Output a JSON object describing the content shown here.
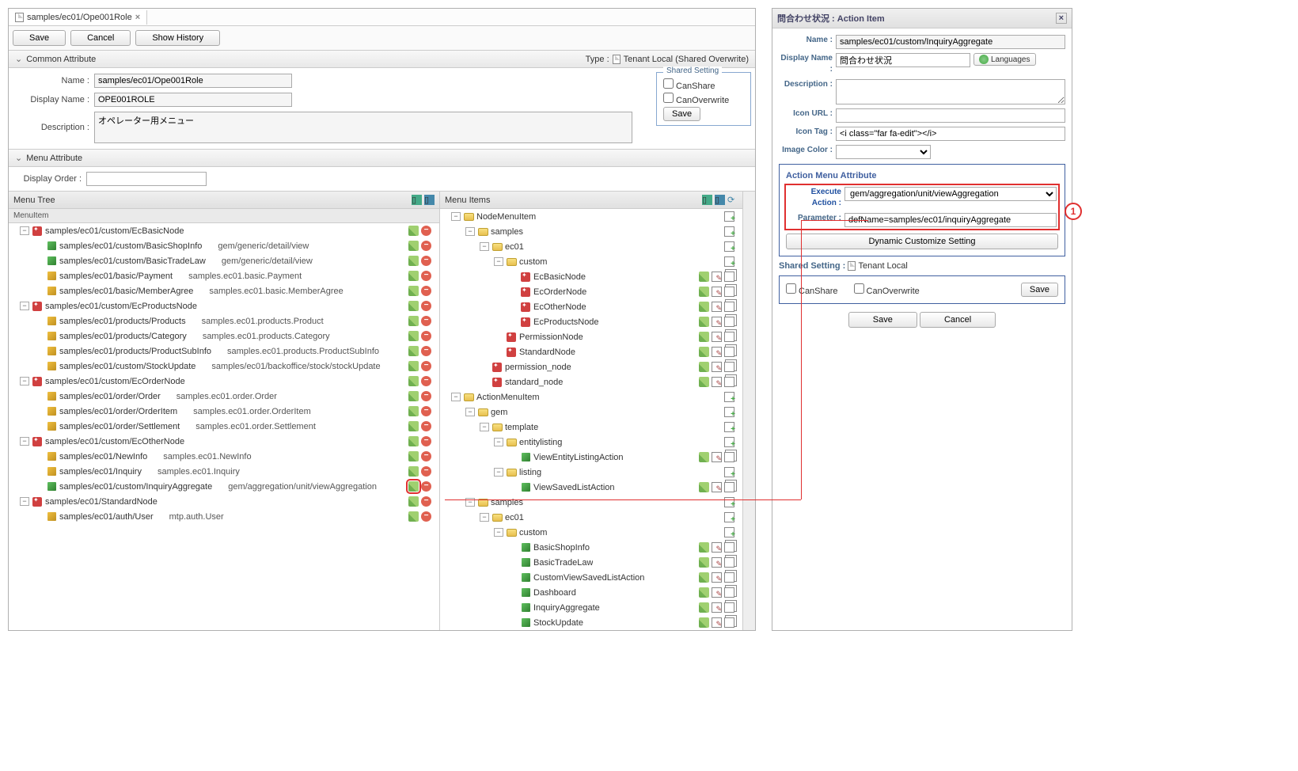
{
  "tab": {
    "title": "samples/ec01/Ope001Role"
  },
  "toolbar": {
    "save": "Save",
    "cancel": "Cancel",
    "history": "Show History"
  },
  "common": {
    "header": "Common Attribute",
    "name_label": "Name :",
    "name": "samples/ec01/Ope001Role",
    "display_label": "Display Name :",
    "display": "OPE001ROLE",
    "desc_label": "Description :",
    "desc": "オペレーター用メニュー",
    "type_label": "Type :",
    "type": "Tenant Local (Shared Overwrite)",
    "shared_title": "Shared Setting",
    "canshare": "CanShare",
    "canoverwrite": "CanOverwrite",
    "save": "Save"
  },
  "menuattr": {
    "header": "Menu Attribute",
    "order_label": "Display Order :"
  },
  "leftcol": {
    "title": "Menu Tree",
    "header": "MenuItem"
  },
  "rightcol": {
    "title": "Menu Items"
  },
  "tree_left": [
    {
      "d": 0,
      "t": "⊟",
      "ic": "node",
      "l": "samples/ec01/custom/EcBasicNode",
      "x": "",
      "a": "ed"
    },
    {
      "d": 1,
      "t": "",
      "ic": "g",
      "l": "samples/ec01/custom/BasicShopInfo",
      "x": "gem/generic/detail/view",
      "a": "ed"
    },
    {
      "d": 1,
      "t": "",
      "ic": "g",
      "l": "samples/ec01/custom/BasicTradeLaw",
      "x": "gem/generic/detail/view",
      "a": "ed"
    },
    {
      "d": 1,
      "t": "",
      "ic": "y",
      "l": "samples/ec01/basic/Payment",
      "x": "samples.ec01.basic.Payment",
      "a": "ed"
    },
    {
      "d": 1,
      "t": "",
      "ic": "y",
      "l": "samples/ec01/basic/MemberAgree",
      "x": "samples.ec01.basic.MemberAgree",
      "a": "ed"
    },
    {
      "d": 0,
      "t": "⊟",
      "ic": "node",
      "l": "samples/ec01/custom/EcProductsNode",
      "x": "",
      "a": "ed"
    },
    {
      "d": 1,
      "t": "",
      "ic": "y",
      "l": "samples/ec01/products/Products",
      "x": "samples.ec01.products.Product",
      "a": "ed"
    },
    {
      "d": 1,
      "t": "",
      "ic": "y",
      "l": "samples/ec01/products/Category",
      "x": "samples.ec01.products.Category",
      "a": "ed"
    },
    {
      "d": 1,
      "t": "",
      "ic": "y",
      "l": "samples/ec01/products/ProductSubInfo",
      "x": "samples.ec01.products.ProductSubInfo",
      "a": "ed"
    },
    {
      "d": 1,
      "t": "",
      "ic": "y",
      "l": "samples/ec01/custom/StockUpdate",
      "x": "samples/ec01/backoffice/stock/stockUpdate",
      "a": "ed"
    },
    {
      "d": 0,
      "t": "⊟",
      "ic": "node",
      "l": "samples/ec01/custom/EcOrderNode",
      "x": "",
      "a": "ed"
    },
    {
      "d": 1,
      "t": "",
      "ic": "y",
      "l": "samples/ec01/order/Order",
      "x": "samples.ec01.order.Order",
      "a": "ed"
    },
    {
      "d": 1,
      "t": "",
      "ic": "y",
      "l": "samples/ec01/order/OrderItem",
      "x": "samples.ec01.order.OrderItem",
      "a": "ed"
    },
    {
      "d": 1,
      "t": "",
      "ic": "y",
      "l": "samples/ec01/order/Settlement",
      "x": "samples.ec01.order.Settlement",
      "a": "ed"
    },
    {
      "d": 0,
      "t": "⊟",
      "ic": "node",
      "l": "samples/ec01/custom/EcOtherNode",
      "x": "",
      "a": "ed"
    },
    {
      "d": 1,
      "t": "",
      "ic": "y",
      "l": "samples/ec01/NewInfo",
      "x": "samples.ec01.NewInfo",
      "a": "ed"
    },
    {
      "d": 1,
      "t": "",
      "ic": "y",
      "l": "samples/ec01/Inquiry",
      "x": "samples.ec01.Inquiry",
      "a": "ed"
    },
    {
      "d": 1,
      "t": "",
      "ic": "g",
      "l": "samples/ec01/custom/InquiryAggregate",
      "x": "gem/aggregation/unit/viewAggregation",
      "a": "ed",
      "hl": true
    },
    {
      "d": 0,
      "t": "⊟",
      "ic": "node",
      "l": "samples/ec01/StandardNode",
      "x": "",
      "a": "ed"
    },
    {
      "d": 1,
      "t": "",
      "ic": "y",
      "l": "samples/ec01/auth/User",
      "x": "mtp.auth.User",
      "a": "ed"
    }
  ],
  "tree_right": [
    {
      "d": 0,
      "t": "⊟",
      "ic": "fo",
      "l": "NodeMenuItem",
      "a": "a"
    },
    {
      "d": 1,
      "t": "⊟",
      "ic": "fo",
      "l": "samples",
      "a": "a"
    },
    {
      "d": 2,
      "t": "⊟",
      "ic": "fo",
      "l": "ec01",
      "a": "a"
    },
    {
      "d": 3,
      "t": "⊟",
      "ic": "fo",
      "l": "custom",
      "a": "a"
    },
    {
      "d": 4,
      "t": "",
      "ic": "node",
      "l": "EcBasicNode",
      "a": "pec"
    },
    {
      "d": 4,
      "t": "",
      "ic": "node",
      "l": "EcOrderNode",
      "a": "pec"
    },
    {
      "d": 4,
      "t": "",
      "ic": "node",
      "l": "EcOtherNode",
      "a": "pec"
    },
    {
      "d": 4,
      "t": "",
      "ic": "node",
      "l": "EcProductsNode",
      "a": "pec"
    },
    {
      "d": 3,
      "t": "",
      "ic": "node",
      "l": "PermissionNode",
      "a": "pec"
    },
    {
      "d": 3,
      "t": "",
      "ic": "node",
      "l": "StandardNode",
      "a": "pec"
    },
    {
      "d": 2,
      "t": "",
      "ic": "node",
      "l": "permission_node",
      "a": "pec"
    },
    {
      "d": 2,
      "t": "",
      "ic": "node",
      "l": "standard_node",
      "a": "pec"
    },
    {
      "d": 0,
      "t": "⊟",
      "ic": "fo",
      "l": "ActionMenuItem",
      "a": "a"
    },
    {
      "d": 1,
      "t": "⊟",
      "ic": "fo",
      "l": "gem",
      "a": "a"
    },
    {
      "d": 2,
      "t": "⊟",
      "ic": "fo",
      "l": "template",
      "a": "a"
    },
    {
      "d": 3,
      "t": "⊟",
      "ic": "fo",
      "l": "entitylisting",
      "a": "a"
    },
    {
      "d": 4,
      "t": "",
      "ic": "g",
      "l": "ViewEntityListingAction",
      "a": "pec"
    },
    {
      "d": 3,
      "t": "⊟",
      "ic": "fo",
      "l": "listing",
      "a": "a"
    },
    {
      "d": 4,
      "t": "",
      "ic": "g",
      "l": "ViewSavedListAction",
      "a": "pec"
    },
    {
      "d": 1,
      "t": "⊟",
      "ic": "fo",
      "l": "samples",
      "a": "a"
    },
    {
      "d": 2,
      "t": "⊟",
      "ic": "fo",
      "l": "ec01",
      "a": "a"
    },
    {
      "d": 3,
      "t": "⊟",
      "ic": "fo",
      "l": "custom",
      "a": "a"
    },
    {
      "d": 4,
      "t": "",
      "ic": "g",
      "l": "BasicShopInfo",
      "a": "pec"
    },
    {
      "d": 4,
      "t": "",
      "ic": "g",
      "l": "BasicTradeLaw",
      "a": "pec"
    },
    {
      "d": 4,
      "t": "",
      "ic": "g",
      "l": "CustomViewSavedListAction",
      "a": "pec"
    },
    {
      "d": 4,
      "t": "",
      "ic": "g",
      "l": "Dashboard",
      "a": "pec"
    },
    {
      "d": 4,
      "t": "",
      "ic": "g",
      "l": "InquiryAggregate",
      "a": "pec"
    },
    {
      "d": 4,
      "t": "",
      "ic": "g",
      "l": "StockUpdate",
      "a": "pec"
    }
  ],
  "dialog": {
    "title": "問合わせ状況 : Action Item",
    "name_l": "Name :",
    "name": "samples/ec01/custom/InquiryAggregate",
    "disp_l": "Display Name :",
    "disp": "問合わせ状況",
    "lang": "Languages",
    "desc_l": "Description :",
    "iconurl_l": "Icon URL :",
    "icontag_l": "Icon Tag :",
    "icontag": "<i class=\"far fa-edit\"></i>",
    "imgcolor_l": "Image Color :",
    "attr_title": "Action Menu Attribute",
    "exec_l": "Execute Action :",
    "exec": "gem/aggregation/unit/viewAggregation",
    "param_l": "Parameter :",
    "param": "defName=samples/ec01/inquiryAggregate",
    "dyn": "Dynamic Customize Setting",
    "shared_l": "Shared Setting :",
    "shared_v": "Tenant Local",
    "canshare": "CanShare",
    "canoverwrite": "CanOverwrite",
    "save": "Save",
    "btn_save": "Save",
    "btn_cancel": "Cancel"
  }
}
